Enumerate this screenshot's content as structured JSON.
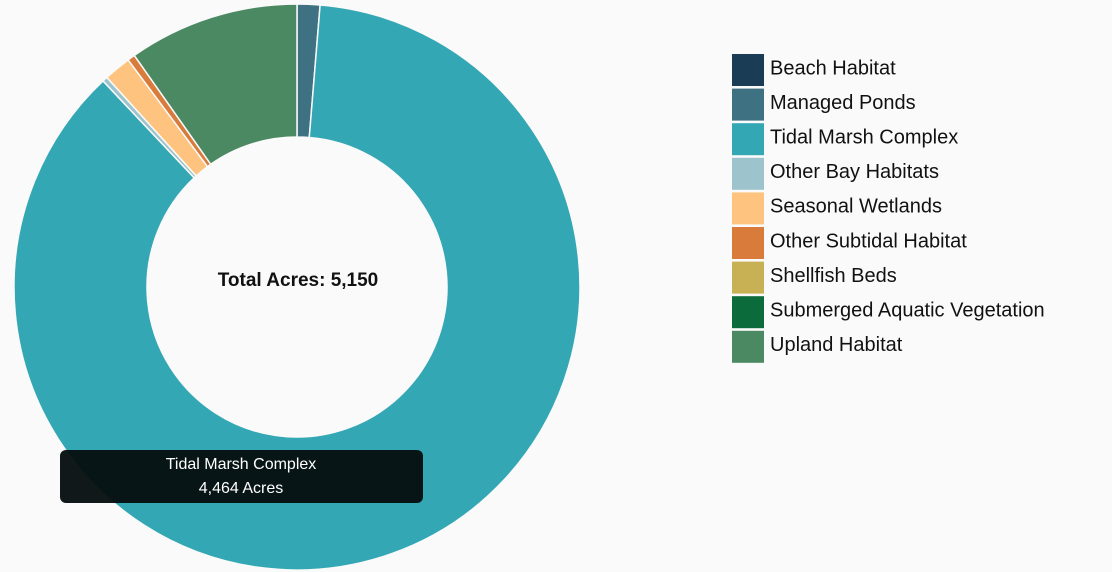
{
  "chart_data": {
    "type": "donut",
    "center_label": "Total Acres: 5,150",
    "categories": [
      "Beach Habitat",
      "Managed Ponds",
      "Tidal Marsh Complex",
      "Other Bay Habitats",
      "Seasonal Wetlands",
      "Other Subtidal Habitat",
      "Shellfish Beds",
      "Submerged Aquatic Vegetation",
      "Upland Habitat"
    ],
    "values": [
      0,
      67,
      4464,
      15,
      80,
      22,
      0,
      0,
      502
    ],
    "colors": [
      "#1a3d55",
      "#3e7182",
      "#34a7b5",
      "#9dc3cc",
      "#fec47f",
      "#d97b3a",
      "#c8b055",
      "#0b6b3a",
      "#4b8963"
    ],
    "tooltip": {
      "title": "Tidal Marsh Complex",
      "label": "4,464 Acres"
    }
  }
}
